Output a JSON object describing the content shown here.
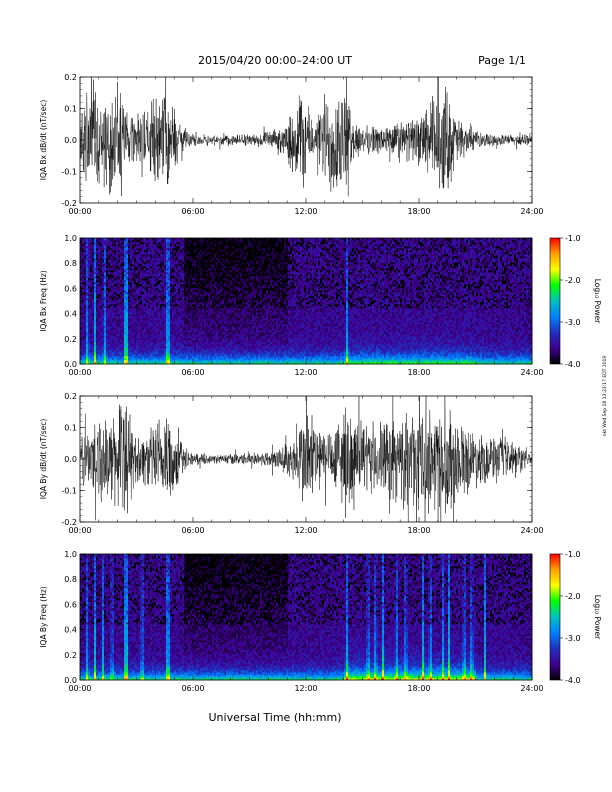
{
  "header": {
    "title": "2015/04/20  00:00–24:00 UT",
    "page": "Page 1/1"
  },
  "footer": {
    "xlabel": "Universal Time (hh:mm)",
    "stamp": "nkt Wed Sep 18 13:23:17 EDT 2019"
  },
  "colorbar": {
    "label": "Log₁₀ Power",
    "ticks": [
      "-1.0",
      "-2.0",
      "-3.0",
      "-4.0"
    ],
    "colors": [
      "#ff0000",
      "#ffa000",
      "#ffff00",
      "#00ff00",
      "#00c0c0",
      "#0080ff",
      "#2030c0",
      "#400090",
      "#000000"
    ]
  },
  "chart_data": [
    {
      "type": "line",
      "ylabel": "IQA Bx dB/dt (nT/sec)",
      "ylim": [
        -0.2,
        0.2
      ],
      "xlim": [
        "00:00",
        "24:00"
      ],
      "x_ticks": [
        "00:00",
        "06:00",
        "12:00",
        "18:00",
        "24:00"
      ],
      "y_ticks": [
        "0.2",
        "0.1",
        "0.0",
        "-0.1",
        "-0.2"
      ],
      "envelope": {
        "x_hours": [
          0,
          0.5,
          1,
          1.5,
          2,
          2.2,
          2.5,
          3,
          4,
          4.5,
          5,
          5.5,
          6,
          7,
          8,
          9,
          10,
          11,
          11.5,
          12,
          12.5,
          13,
          13.5,
          14,
          14.5,
          15,
          16,
          17,
          18,
          19,
          19.5,
          20,
          21,
          22,
          23,
          24
        ],
        "amplitude": [
          0.12,
          0.18,
          0.2,
          0.15,
          0.2,
          0.2,
          0.1,
          0.08,
          0.15,
          0.2,
          0.12,
          0.04,
          0.02,
          0.02,
          0.02,
          0.02,
          0.03,
          0.05,
          0.2,
          0.15,
          0.05,
          0.18,
          0.2,
          0.2,
          0.08,
          0.05,
          0.05,
          0.07,
          0.08,
          0.2,
          0.2,
          0.08,
          0.03,
          0.02,
          0.02,
          0.02
        ]
      }
    },
    {
      "type": "heatmap",
      "ylabel": "IQA Bx Freq (Hz)",
      "ylim": [
        0.0,
        1.0
      ],
      "xlim": [
        "00:00",
        "24:00"
      ],
      "x_ticks": [
        "00:00",
        "06:00",
        "12:00",
        "18:00",
        "24:00"
      ],
      "y_ticks": [
        "1.0",
        "0.8",
        "0.6",
        "0.4",
        "0.2",
        "0.0"
      ],
      "colorbar_range": [
        -4.0,
        -1.0
      ]
    },
    {
      "type": "line",
      "ylabel": "IQA By dB/dt (nT/sec)",
      "ylim": [
        -0.2,
        0.2
      ],
      "xlim": [
        "00:00",
        "24:00"
      ],
      "x_ticks": [
        "00:00",
        "06:00",
        "12:00",
        "18:00",
        "24:00"
      ],
      "y_ticks": [
        "0.2",
        "0.1",
        "0.0",
        "-0.1",
        "-0.2"
      ],
      "envelope": {
        "x_hours": [
          0,
          0.5,
          1,
          1.5,
          2,
          2.5,
          3,
          4,
          4.5,
          5,
          5.5,
          6,
          7,
          8,
          9,
          10,
          11,
          11.5,
          12,
          13,
          13.5,
          14,
          15,
          16,
          17,
          17.5,
          18,
          19,
          19.5,
          20,
          21,
          22,
          23,
          24
        ],
        "amplitude": [
          0.1,
          0.12,
          0.18,
          0.12,
          0.2,
          0.2,
          0.08,
          0.12,
          0.2,
          0.15,
          0.04,
          0.02,
          0.015,
          0.02,
          0.02,
          0.03,
          0.06,
          0.1,
          0.2,
          0.1,
          0.12,
          0.2,
          0.12,
          0.14,
          0.16,
          0.16,
          0.18,
          0.2,
          0.2,
          0.15,
          0.1,
          0.08,
          0.06,
          0.03
        ]
      }
    },
    {
      "type": "heatmap",
      "ylabel": "IQA By Freq (Hz)",
      "ylim": [
        0.0,
        1.0
      ],
      "xlim": [
        "00:00",
        "24:00"
      ],
      "x_ticks": [
        "00:00",
        "06:00",
        "12:00",
        "18:00",
        "24:00"
      ],
      "y_ticks": [
        "1.0",
        "0.8",
        "0.6",
        "0.4",
        "0.2",
        "0.0"
      ],
      "colorbar_range": [
        -4.0,
        -1.0
      ]
    }
  ]
}
